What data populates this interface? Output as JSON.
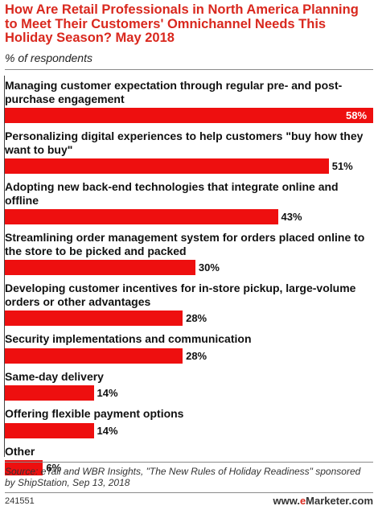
{
  "header": {
    "title": "How Are Retail Professionals in North America Planning to Meet Their Customers' Omnichannel Needs This Holiday Season? May 2018",
    "subtitle": "% of respondents"
  },
  "colors": {
    "bar": "#ee0f0f",
    "title": "#d9281e"
  },
  "chart_data": {
    "type": "bar",
    "orientation": "horizontal",
    "categories": [
      "Managing customer expectation through regular pre- and post-purchase engagement",
      "Personalizing digital experiences to help customers \"buy how they want to buy\"",
      "Adopting new back-end technologies that integrate online and offline",
      "Streamlining order management system for orders placed online to the store to be picked and packed",
      "Developing customer incentives for in-store pickup, large-volume orders or other advantages",
      "Security implementations and communication",
      "Same-day delivery",
      "Offering flexible payment options",
      "Other"
    ],
    "values": [
      58,
      51,
      43,
      30,
      28,
      28,
      14,
      14,
      6
    ],
    "value_labels": [
      "58%",
      "51%",
      "43%",
      "30%",
      "28%",
      "28%",
      "14%",
      "14%",
      "6%"
    ],
    "xlim": [
      0,
      58
    ],
    "grid": false,
    "legend": "none"
  },
  "footer": {
    "source": "Source: eTail and WBR Insights, \"The New Rules of Holiday Readiness\" sponsored by ShipStation, Sep 13, 2018",
    "chart_id": "241551",
    "logo": {
      "prefix": "www.",
      "brand_e": "e",
      "brand_rest": "Marketer",
      "suffix": ".com"
    }
  }
}
